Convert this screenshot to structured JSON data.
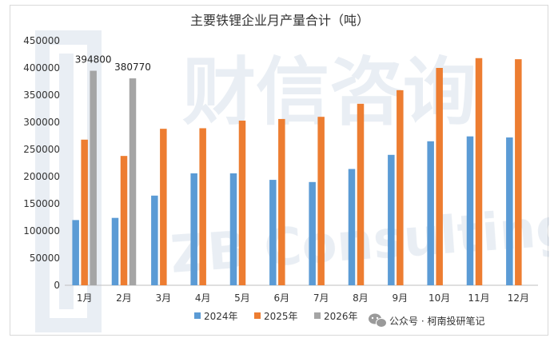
{
  "chart_data": {
    "type": "bar",
    "title": "主要铁锂企业月产量合计（吨）",
    "categories": [
      "1月",
      "2月",
      "3月",
      "4月",
      "5月",
      "6月",
      "7月",
      "8月",
      "9月",
      "10月",
      "11月",
      "12月"
    ],
    "series": [
      {
        "name": "2024年",
        "color": "#5b9bd5",
        "values": [
          120000,
          124000,
          165000,
          206000,
          206000,
          194000,
          190000,
          214000,
          240000,
          265000,
          274000,
          272000
        ]
      },
      {
        "name": "2025年",
        "color": "#ed7d31",
        "values": [
          268000,
          238000,
          288000,
          289000,
          303000,
          306000,
          310000,
          334000,
          359000,
          400000,
          418000,
          416000
        ]
      },
      {
        "name": "2026年",
        "color": "#a5a5a5",
        "values": [
          394800,
          380770,
          null,
          null,
          null,
          null,
          null,
          null,
          null,
          null,
          null,
          null
        ]
      }
    ],
    "data_labels": [
      {
        "series": 2,
        "index": 0,
        "text": "394800"
      },
      {
        "series": 2,
        "index": 1,
        "text": "380770"
      }
    ],
    "ylim": [
      0,
      450000
    ],
    "yticks": [
      0,
      50000,
      100000,
      150000,
      200000,
      250000,
      300000,
      350000,
      400000,
      450000
    ],
    "grid": false,
    "legend_position": "bottom"
  },
  "watermark": {
    "big_text": "财信咨询",
    "sub_text": "ZB Consulting"
  },
  "footer": {
    "wechat_label": "公众号 · 柯南投研笔记",
    "wechat_icon": "wechat-icon"
  }
}
